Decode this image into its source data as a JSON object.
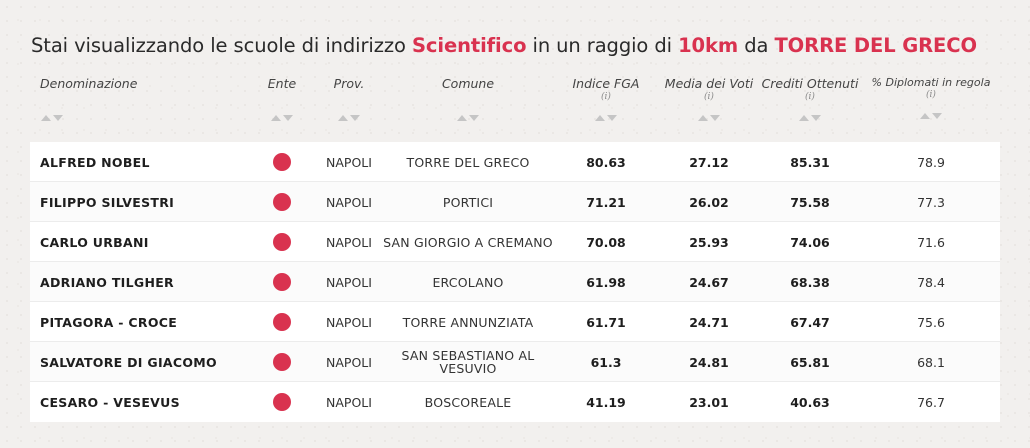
{
  "headline": {
    "prefix": "Stai visualizzando le scuole di indirizzo",
    "indirizzo": "Scientifico",
    "mid": "in un raggio di",
    "raggio": "10km",
    "da": "da",
    "citta": "TORRE DEL GRECO"
  },
  "colors": {
    "accent": "#d9324f"
  },
  "columns": {
    "denominazione": "Denominazione",
    "ente": "Ente",
    "prov": "Prov.",
    "comune": "Comune",
    "fga": "Indice FGA",
    "media": "Media dei Voti",
    "crediti": "Crediti Ottenuti",
    "diplomati": "% Diplomati in regola",
    "info_mark": "(i)"
  },
  "schools": [
    {
      "name": "ALFRED NOBEL",
      "prov": "NAPOLI",
      "comune": "TORRE DEL GRECO",
      "fga": "80.63",
      "media": "27.12",
      "crediti": "85.31",
      "diplomati": "78.9"
    },
    {
      "name": "FILIPPO SILVESTRI",
      "prov": "NAPOLI",
      "comune": "PORTICI",
      "fga": "71.21",
      "media": "26.02",
      "crediti": "75.58",
      "diplomati": "77.3"
    },
    {
      "name": "CARLO URBANI",
      "prov": "NAPOLI",
      "comune": "SAN GIORGIO A CREMANO",
      "fga": "70.08",
      "media": "25.93",
      "crediti": "74.06",
      "diplomati": "71.6"
    },
    {
      "name": "ADRIANO TILGHER",
      "prov": "NAPOLI",
      "comune": "ERCOLANO",
      "fga": "61.98",
      "media": "24.67",
      "crediti": "68.38",
      "diplomati": "78.4"
    },
    {
      "name": "PITAGORA - CROCE",
      "prov": "NAPOLI",
      "comune": "TORRE ANNUNZIATA",
      "fga": "61.71",
      "media": "24.71",
      "crediti": "67.47",
      "diplomati": "75.6"
    },
    {
      "name": "SALVATORE DI GIACOMO",
      "prov": "NAPOLI",
      "comune": "SAN SEBASTIANO AL VESUVIO",
      "fga": "61.3",
      "media": "24.81",
      "crediti": "65.81",
      "diplomati": "68.1"
    },
    {
      "name": "CESARO - VESEVUS",
      "prov": "NAPOLI",
      "comune": "BOSCOREALE",
      "fga": "41.19",
      "media": "23.01",
      "crediti": "40.63",
      "diplomati": "76.7"
    }
  ]
}
